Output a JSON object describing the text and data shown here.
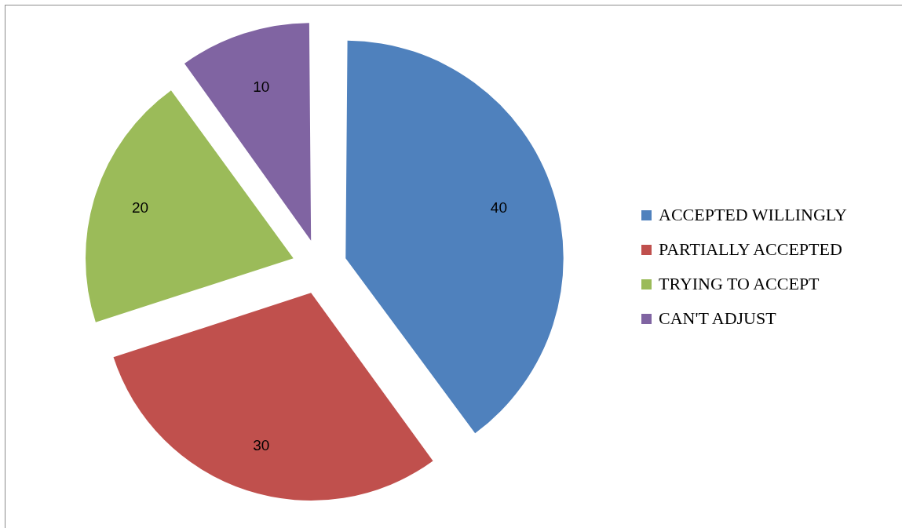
{
  "chart_data": {
    "type": "pie",
    "categories": [
      "ACCEPTED WILLINGLY",
      "PARTIALLY ACCEPTED",
      "TRYING TO ACCEPT",
      "CAN'T ADJUST"
    ],
    "values": [
      40,
      30,
      20,
      10
    ],
    "colors": [
      "#4f81bd",
      "#c0504d",
      "#9bbb59",
      "#8064a2"
    ],
    "data_labels": true,
    "legend": "right"
  }
}
